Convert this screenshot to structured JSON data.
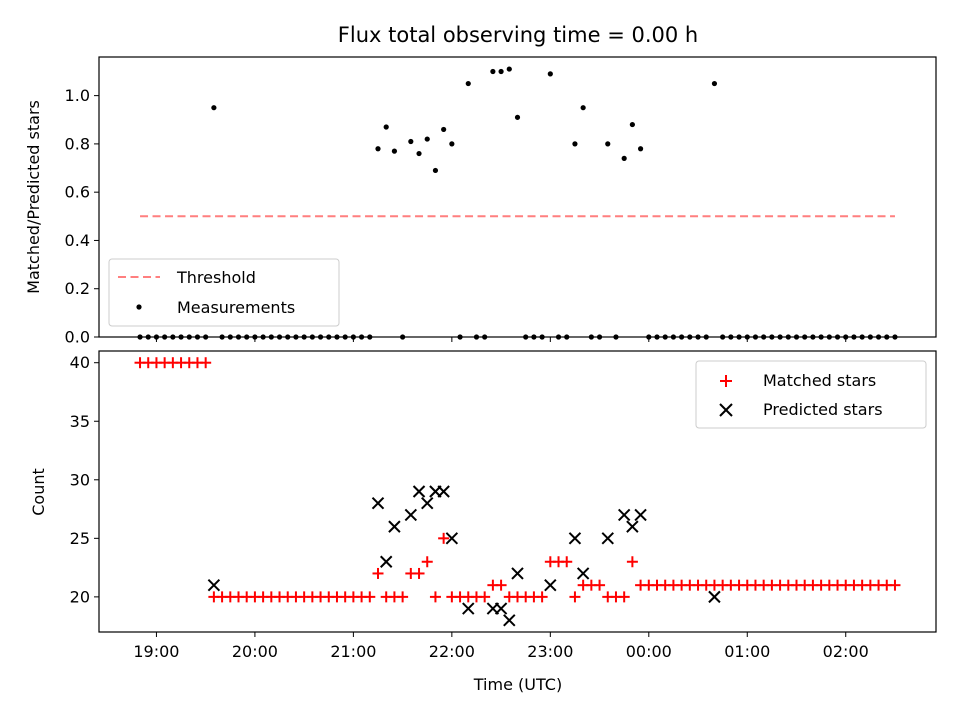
{
  "chart_data": [
    {
      "type": "scatter",
      "title": "Flux total observing time = 0.00 h",
      "xlabel": "",
      "ylabel": "Matched/Predicted stars",
      "ylim": [
        0,
        1.16
      ],
      "yticks": [
        "0.0",
        "0.2",
        "0.4",
        "0.6",
        "0.8",
        "1.0"
      ],
      "legend_position": "lower-left",
      "threshold": {
        "name": "Threshold",
        "value": 0.5,
        "x_start": "18:50",
        "x_end": "02:30",
        "color": "#ff7f7f"
      },
      "series": [
        {
          "name": "Measurements",
          "color": "#000000",
          "points": [
            [
              "18:50",
              0
            ],
            [
              "18:55",
              0
            ],
            [
              "19:00",
              0
            ],
            [
              "19:05",
              0
            ],
            [
              "19:10",
              0
            ],
            [
              "19:15",
              0
            ],
            [
              "19:20",
              0
            ],
            [
              "19:25",
              0
            ],
            [
              "19:30",
              0
            ],
            [
              "19:35",
              0.95
            ],
            [
              "19:40",
              0
            ],
            [
              "19:45",
              0
            ],
            [
              "19:50",
              0
            ],
            [
              "19:55",
              0
            ],
            [
              "20:00",
              0
            ],
            [
              "20:05",
              0
            ],
            [
              "20:10",
              0
            ],
            [
              "20:15",
              0
            ],
            [
              "20:20",
              0
            ],
            [
              "20:25",
              0
            ],
            [
              "20:30",
              0
            ],
            [
              "20:35",
              0
            ],
            [
              "20:40",
              0
            ],
            [
              "20:45",
              0
            ],
            [
              "20:50",
              0
            ],
            [
              "20:55",
              0
            ],
            [
              "21:00",
              0
            ],
            [
              "21:05",
              0
            ],
            [
              "21:10",
              0
            ],
            [
              "21:15",
              0.78
            ],
            [
              "21:20",
              0.87
            ],
            [
              "21:25",
              0.77
            ],
            [
              "21:30",
              0
            ],
            [
              "21:35",
              0.81
            ],
            [
              "21:40",
              0.76
            ],
            [
              "21:45",
              0.82
            ],
            [
              "21:50",
              0.69
            ],
            [
              "21:55",
              0.86
            ],
            [
              "22:00",
              0.8
            ],
            [
              "22:05",
              0
            ],
            [
              "22:10",
              1.05
            ],
            [
              "22:15",
              0
            ],
            [
              "22:20",
              0
            ],
            [
              "22:25",
              1.1
            ],
            [
              "22:30",
              1.1
            ],
            [
              "22:35",
              1.11
            ],
            [
              "22:40",
              0.91
            ],
            [
              "22:45",
              0
            ],
            [
              "22:50",
              0
            ],
            [
              "22:55",
              0
            ],
            [
              "23:00",
              1.09
            ],
            [
              "23:05",
              0
            ],
            [
              "23:10",
              0
            ],
            [
              "23:15",
              0.8
            ],
            [
              "23:20",
              0.95
            ],
            [
              "23:25",
              0
            ],
            [
              "23:30",
              0
            ],
            [
              "23:35",
              0.8
            ],
            [
              "23:40",
              0
            ],
            [
              "23:45",
              0.74
            ],
            [
              "23:50",
              0.88
            ],
            [
              "23:55",
              0.78
            ],
            [
              "00:00",
              0
            ],
            [
              "00:05",
              0
            ],
            [
              "00:10",
              0
            ],
            [
              "00:15",
              0
            ],
            [
              "00:20",
              0
            ],
            [
              "00:25",
              0
            ],
            [
              "00:30",
              0
            ],
            [
              "00:35",
              0
            ],
            [
              "00:40",
              1.05
            ],
            [
              "00:45",
              0
            ],
            [
              "00:50",
              0
            ],
            [
              "00:55",
              0
            ],
            [
              "01:00",
              0
            ],
            [
              "01:05",
              0
            ],
            [
              "01:10",
              0
            ],
            [
              "01:15",
              0
            ],
            [
              "01:20",
              0
            ],
            [
              "01:25",
              0
            ],
            [
              "01:30",
              0
            ],
            [
              "01:35",
              0
            ],
            [
              "01:40",
              0
            ],
            [
              "01:45",
              0
            ],
            [
              "01:50",
              0
            ],
            [
              "01:55",
              0
            ],
            [
              "02:00",
              0
            ],
            [
              "02:05",
              0
            ],
            [
              "02:10",
              0
            ],
            [
              "02:15",
              0
            ],
            [
              "02:20",
              0
            ],
            [
              "02:25",
              0
            ],
            [
              "02:30",
              0
            ]
          ]
        }
      ]
    },
    {
      "type": "scatter",
      "title": "",
      "xlabel": "Time (UTC)",
      "ylabel": "Count",
      "ylim": [
        17,
        41
      ],
      "yticks": [
        "20",
        "25",
        "30",
        "35",
        "40"
      ],
      "xticks": [
        "19:00",
        "20:00",
        "21:00",
        "22:00",
        "23:00",
        "00:00",
        "01:00",
        "02:00"
      ],
      "legend_position": "upper-right",
      "series": [
        {
          "name": "Matched stars",
          "marker": "plus",
          "color": "#ff0000",
          "points": [
            [
              "18:50",
              40
            ],
            [
              "18:55",
              40
            ],
            [
              "19:00",
              40
            ],
            [
              "19:05",
              40
            ],
            [
              "19:10",
              40
            ],
            [
              "19:15",
              40
            ],
            [
              "19:20",
              40
            ],
            [
              "19:25",
              40
            ],
            [
              "19:30",
              40
            ],
            [
              "19:35",
              20
            ],
            [
              "19:40",
              20
            ],
            [
              "19:45",
              20
            ],
            [
              "19:50",
              20
            ],
            [
              "19:55",
              20
            ],
            [
              "20:00",
              20
            ],
            [
              "20:05",
              20
            ],
            [
              "20:10",
              20
            ],
            [
              "20:15",
              20
            ],
            [
              "20:20",
              20
            ],
            [
              "20:25",
              20
            ],
            [
              "20:30",
              20
            ],
            [
              "20:35",
              20
            ],
            [
              "20:40",
              20
            ],
            [
              "20:45",
              20
            ],
            [
              "20:50",
              20
            ],
            [
              "20:55",
              20
            ],
            [
              "21:00",
              20
            ],
            [
              "21:05",
              20
            ],
            [
              "21:10",
              20
            ],
            [
              "21:15",
              22
            ],
            [
              "21:20",
              20
            ],
            [
              "21:25",
              20
            ],
            [
              "21:30",
              20
            ],
            [
              "21:35",
              22
            ],
            [
              "21:40",
              22
            ],
            [
              "21:45",
              23
            ],
            [
              "21:50",
              20
            ],
            [
              "21:55",
              25
            ],
            [
              "22:00",
              20
            ],
            [
              "22:05",
              20
            ],
            [
              "22:10",
              20
            ],
            [
              "22:15",
              20
            ],
            [
              "22:20",
              20
            ],
            [
              "22:25",
              21
            ],
            [
              "22:30",
              21
            ],
            [
              "22:35",
              20
            ],
            [
              "22:40",
              20
            ],
            [
              "22:45",
              20
            ],
            [
              "22:50",
              20
            ],
            [
              "22:55",
              20
            ],
            [
              "23:00",
              23
            ],
            [
              "23:05",
              23
            ],
            [
              "23:10",
              23
            ],
            [
              "23:15",
              20
            ],
            [
              "23:20",
              21
            ],
            [
              "23:25",
              21
            ],
            [
              "23:30",
              21
            ],
            [
              "23:35",
              20
            ],
            [
              "23:40",
              20
            ],
            [
              "23:45",
              20
            ],
            [
              "23:50",
              23
            ],
            [
              "23:55",
              21
            ],
            [
              "00:00",
              21
            ],
            [
              "00:05",
              21
            ],
            [
              "00:10",
              21
            ],
            [
              "00:15",
              21
            ],
            [
              "00:20",
              21
            ],
            [
              "00:25",
              21
            ],
            [
              "00:30",
              21
            ],
            [
              "00:35",
              21
            ],
            [
              "00:40",
              21
            ],
            [
              "00:45",
              21
            ],
            [
              "00:50",
              21
            ],
            [
              "00:55",
              21
            ],
            [
              "01:00",
              21
            ],
            [
              "01:05",
              21
            ],
            [
              "01:10",
              21
            ],
            [
              "01:15",
              21
            ],
            [
              "01:20",
              21
            ],
            [
              "01:25",
              21
            ],
            [
              "01:30",
              21
            ],
            [
              "01:35",
              21
            ],
            [
              "01:40",
              21
            ],
            [
              "01:45",
              21
            ],
            [
              "01:50",
              21
            ],
            [
              "01:55",
              21
            ],
            [
              "02:00",
              21
            ],
            [
              "02:05",
              21
            ],
            [
              "02:10",
              21
            ],
            [
              "02:15",
              21
            ],
            [
              "02:20",
              21
            ],
            [
              "02:25",
              21
            ],
            [
              "02:30",
              21
            ]
          ]
        },
        {
          "name": "Predicted stars",
          "marker": "x",
          "color": "#000000",
          "points": [
            [
              "19:35",
              21
            ],
            [
              "21:15",
              28
            ],
            [
              "21:20",
              23
            ],
            [
              "21:25",
              26
            ],
            [
              "21:35",
              27
            ],
            [
              "21:40",
              29
            ],
            [
              "21:45",
              28
            ],
            [
              "21:50",
              29
            ],
            [
              "21:55",
              29
            ],
            [
              "22:00",
              25
            ],
            [
              "22:10",
              19
            ],
            [
              "22:25",
              19
            ],
            [
              "22:30",
              19
            ],
            [
              "22:35",
              18
            ],
            [
              "22:40",
              22
            ],
            [
              "23:00",
              21
            ],
            [
              "23:15",
              25
            ],
            [
              "23:20",
              22
            ],
            [
              "23:35",
              25
            ],
            [
              "23:45",
              27
            ],
            [
              "23:50",
              26
            ],
            [
              "23:55",
              27
            ],
            [
              "00:40",
              20
            ]
          ]
        }
      ]
    }
  ]
}
